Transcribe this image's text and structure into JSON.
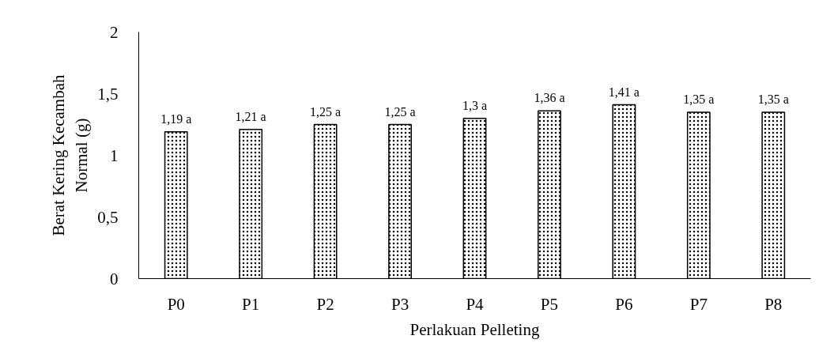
{
  "chart_data": {
    "type": "bar",
    "xlabel": "Perlakuan Pelleting",
    "ylabel": "Berat Kering Kecambah Normal (g)",
    "categories": [
      "P0",
      "P1",
      "P2",
      "P3",
      "P4",
      "P5",
      "P6",
      "P7",
      "P8"
    ],
    "values": [
      1.19,
      1.21,
      1.25,
      1.25,
      1.3,
      1.36,
      1.41,
      1.35,
      1.35
    ],
    "value_labels": [
      "1,19 a",
      "1,21 a",
      "1,25 a",
      "1,25 a",
      "1,3 a",
      "1,36 a",
      "1,41 a",
      "1,35 a",
      "1,35 a"
    ],
    "color": "#ffffff",
    "ylim": [
      0,
      2
    ],
    "yticks": [
      0,
      {
        "value": 0.5,
        "label": "0,5"
      },
      1,
      {
        "value": 1.5,
        "label": "1,5"
      },
      2
    ],
    "grid": false
  }
}
